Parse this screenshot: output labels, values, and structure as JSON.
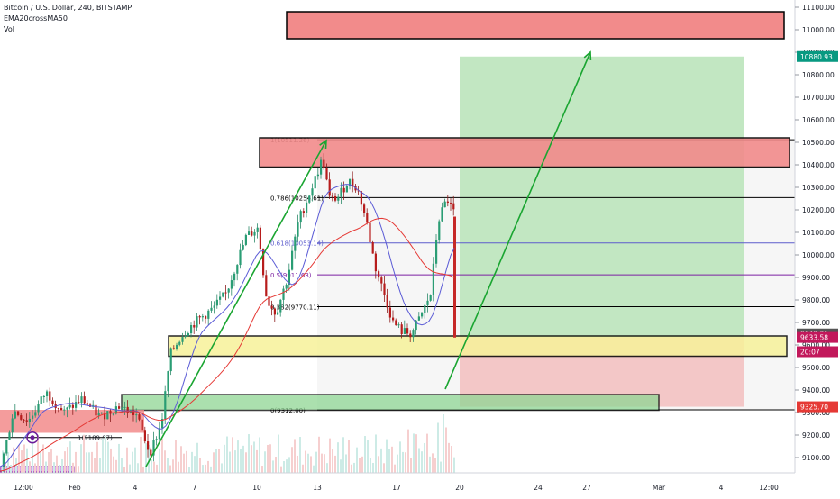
{
  "legend": {
    "symbol": "Bitcoin / U.S. Dollar, 240, BITSTAMP",
    "indicator": "EMA20crossMA50",
    "volume": "Vol"
  },
  "chart_data": {
    "type": "candlestick",
    "ylim": [
      9050,
      11150
    ],
    "y_ticks": [
      9100,
      9200,
      9300,
      9400,
      9500,
      9600,
      9700,
      9800,
      9900,
      10000,
      10100,
      10200,
      10300,
      10400,
      10500,
      10600,
      10700,
      10800,
      10900,
      11000,
      11100
    ],
    "x_ticks": [
      "12:00",
      "Feb",
      "4",
      "7",
      "10",
      "13",
      "17",
      "20",
      "24",
      "27",
      "Mar",
      "4",
      "12:00"
    ],
    "price_labels": [
      {
        "value": 10880.93,
        "text": "10880.93",
        "color": "#089981"
      },
      {
        "value": 9649.01,
        "text": "9649.01",
        "color": "#555555"
      },
      {
        "value": 9633.58,
        "text": "9633.58",
        "color": "#c2185b"
      },
      {
        "value": 9570,
        "text": "20:07",
        "color": "#c2185b"
      },
      {
        "value": 9325.7,
        "text": "9325.70",
        "color": "#e53935"
      }
    ],
    "fib_levels": [
      {
        "label": "1(10511.26)",
        "value": 10511.26,
        "color": "#000000"
      },
      {
        "label": "0.786(10254.61)",
        "value": 10254.61,
        "color": "#000000"
      },
      {
        "label": "0.618(10053.14)",
        "value": 10053.14,
        "color": "#5c5ccc"
      },
      {
        "label": "0.5(9911.63)",
        "value": 9911.63,
        "color": "#7b1fa2"
      },
      {
        "label": "0.382(9770.11)",
        "value": 9770.11,
        "color": "#000000"
      },
      {
        "label": "0(9312.00)",
        "value": 9312.0,
        "color": "#000000"
      },
      {
        "label": "1(9189.07)",
        "value": 9189.07,
        "color": "#000000"
      }
    ],
    "colors": {
      "up": "#26a69a",
      "down": "#ef5350",
      "wick_up": "#2e7d6b",
      "ema": "#5b5bd6",
      "ma": "#e53935",
      "supply_zone": "#f28b8b",
      "demand_zone": "#8fd694",
      "yellow_zone": "#f7f29a",
      "target_zone": "#bfe6bf",
      "stop_zone": "#f2c4c4",
      "arrow": "#1aa531"
    }
  }
}
